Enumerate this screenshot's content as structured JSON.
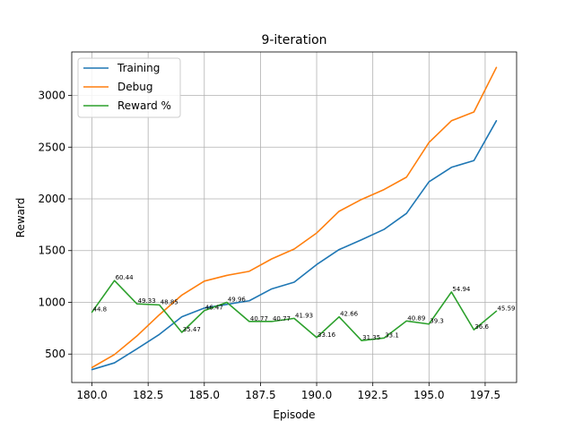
{
  "chart_data": {
    "type": "line",
    "title": "9-iteration",
    "xlabel": "Episode",
    "ylabel": "Reward",
    "x": [
      180,
      181,
      182,
      183,
      184,
      185,
      186,
      187,
      188,
      189,
      190,
      191,
      192,
      193,
      194,
      195,
      196,
      197,
      198
    ],
    "xlim": [
      179.1,
      198.9
    ],
    "ylim": [
      225,
      3420
    ],
    "xticks": [
      180.0,
      182.5,
      185.0,
      187.5,
      190.0,
      192.5,
      195.0,
      197.5
    ],
    "xtick_labels": [
      "180.0",
      "182.5",
      "185.0",
      "187.5",
      "190.0",
      "192.5",
      "195.0",
      "197.5"
    ],
    "yticks": [
      500,
      1000,
      1500,
      2000,
      2500,
      3000
    ],
    "ytick_labels": [
      "500",
      "1000",
      "1500",
      "2000",
      "2500",
      "3000"
    ],
    "grid": true,
    "legend": "upper left",
    "series": [
      {
        "name": "Training",
        "color": "#1f77b4",
        "values": [
          350,
          415,
          550,
          690,
          860,
          945,
          980,
          1015,
          1130,
          1195,
          1365,
          1510,
          1605,
          1705,
          1860,
          2165,
          2305,
          2370,
          2755
        ]
      },
      {
        "name": "Debug",
        "color": "#ff7f0e",
        "values": [
          370,
          495,
          675,
          880,
          1070,
          1205,
          1260,
          1300,
          1420,
          1515,
          1670,
          1880,
          1995,
          2090,
          2210,
          2545,
          2755,
          2840,
          3270
        ]
      },
      {
        "name": "Reward %",
        "color": "#2ca02c",
        "values": [
          905,
          1210,
          985,
          975,
          710,
          920,
          1000,
          815,
          815,
          845,
          660,
          860,
          630,
          655,
          820,
          790,
          1100,
          735,
          915
        ],
        "labels": [
          "44.8",
          "60.44",
          "49.33",
          "48.85",
          "35.47",
          "46.47",
          "49.96",
          "40.77",
          "40.77",
          "41.93",
          "33.16",
          "42.66",
          "31.35",
          "33.1",
          "40.89",
          "39.3",
          "54.94",
          "36.6",
          "45.59"
        ]
      }
    ]
  }
}
